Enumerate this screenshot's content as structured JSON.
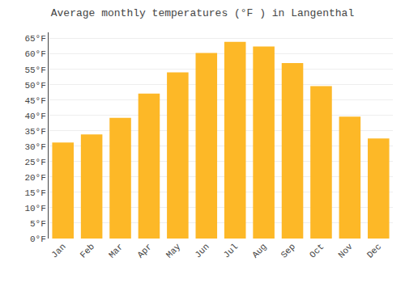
{
  "chart_data": {
    "type": "bar",
    "title": "Average monthly temperatures (°F ) in Langenthal",
    "categories": [
      "Jan",
      "Feb",
      "Mar",
      "Apr",
      "May",
      "Jun",
      "Jul",
      "Aug",
      "Sep",
      "Oct",
      "Nov",
      "Dec"
    ],
    "values": [
      31.2,
      33.8,
      39.2,
      47.1,
      54.0,
      60.3,
      63.9,
      62.4,
      57.0,
      49.5,
      39.6,
      32.5
    ],
    "color": "#FDB827",
    "ylim": [
      0,
      67
    ],
    "yticks": [
      {
        "value": 0,
        "label": "0°F"
      },
      {
        "value": 5,
        "label": "5°F"
      },
      {
        "value": 10,
        "label": "10°F"
      },
      {
        "value": 15,
        "label": "15°F"
      },
      {
        "value": 20,
        "label": "20°F"
      },
      {
        "value": 25,
        "label": "25°F"
      },
      {
        "value": 30,
        "label": "30°F"
      },
      {
        "value": 35,
        "label": "35°F"
      },
      {
        "value": 40,
        "label": "40°F"
      },
      {
        "value": 45,
        "label": "45°F"
      },
      {
        "value": 50,
        "label": "50°F"
      },
      {
        "value": 55,
        "label": "55°F"
      },
      {
        "value": 60,
        "label": "60°F"
      },
      {
        "value": 65,
        "label": "65°F"
      }
    ],
    "grid": true
  }
}
